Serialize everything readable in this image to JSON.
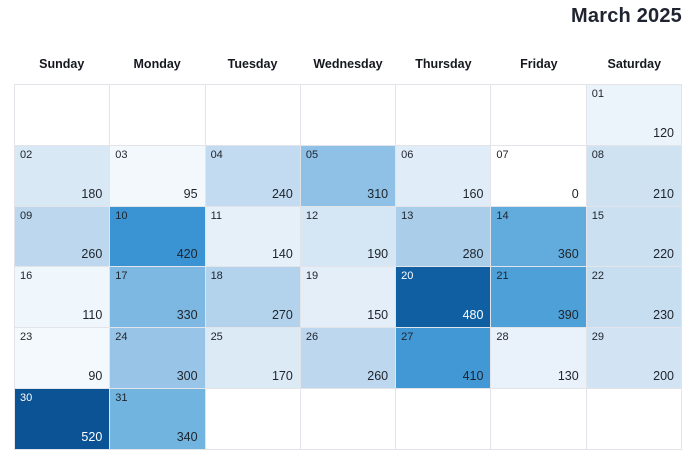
{
  "title": "March 2025",
  "weekday_headers": [
    "Sunday",
    "Monday",
    "Tuesday",
    "Wednesday",
    "Thursday",
    "Friday",
    "Saturday"
  ],
  "chart_data": {
    "type": "heatmap",
    "subtype": "calendar-month",
    "title": "March 2025",
    "month": "March",
    "year": 2025,
    "value_min": 0,
    "value_max": 520,
    "legend": "none",
    "grid": true,
    "weeks": [
      [
        null,
        null,
        null,
        null,
        null,
        null,
        {
          "day": "01",
          "value": 120
        }
      ],
      [
        {
          "day": "02",
          "value": 180
        },
        {
          "day": "03",
          "value": 95
        },
        {
          "day": "04",
          "value": 240
        },
        {
          "day": "05",
          "value": 310
        },
        {
          "day": "06",
          "value": 160
        },
        {
          "day": "07",
          "value": 0
        },
        {
          "day": "08",
          "value": 210
        }
      ],
      [
        {
          "day": "09",
          "value": 260
        },
        {
          "day": "10",
          "value": 420
        },
        {
          "day": "11",
          "value": 140
        },
        {
          "day": "12",
          "value": 190
        },
        {
          "day": "13",
          "value": 280
        },
        {
          "day": "14",
          "value": 360
        },
        {
          "day": "15",
          "value": 220
        }
      ],
      [
        {
          "day": "16",
          "value": 110
        },
        {
          "day": "17",
          "value": 330
        },
        {
          "day": "18",
          "value": 270
        },
        {
          "day": "19",
          "value": 150
        },
        {
          "day": "20",
          "value": 480
        },
        {
          "day": "21",
          "value": 390
        },
        {
          "day": "22",
          "value": 230
        }
      ],
      [
        {
          "day": "23",
          "value": 90
        },
        {
          "day": "24",
          "value": 300
        },
        {
          "day": "25",
          "value": 170
        },
        {
          "day": "26",
          "value": 260
        },
        {
          "day": "27",
          "value": 410
        },
        {
          "day": "28",
          "value": 130
        },
        {
          "day": "29",
          "value": 200
        }
      ],
      [
        {
          "day": "30",
          "value": 520
        },
        {
          "day": "31",
          "value": 340
        },
        null,
        null,
        null,
        null,
        null
      ]
    ],
    "color_scale": {
      "stops": [
        {
          "value": 0,
          "color": "#ffffff"
        },
        {
          "value": 100,
          "color": "#f2f8fd"
        },
        {
          "value": 150,
          "color": "#e3eef8"
        },
        {
          "value": 200,
          "color": "#d2e4f3"
        },
        {
          "value": 260,
          "color": "#bcd7ee"
        },
        {
          "value": 310,
          "color": "#8fc0e5"
        },
        {
          "value": 350,
          "color": "#68b0de"
        },
        {
          "value": 420,
          "color": "#3a94d4"
        },
        {
          "value": 460,
          "color": "#1d79bc"
        },
        {
          "value": 480,
          "color": "#0f5fa2"
        },
        {
          "value": 520,
          "color": "#0b5394"
        }
      ],
      "light_text_threshold": 460,
      "light_text_color": "#ffffff",
      "dark_text_color": "#1e232b",
      "empty_cell_color": "#ffffff",
      "grid_line_color": "#e2e4e9"
    }
  }
}
